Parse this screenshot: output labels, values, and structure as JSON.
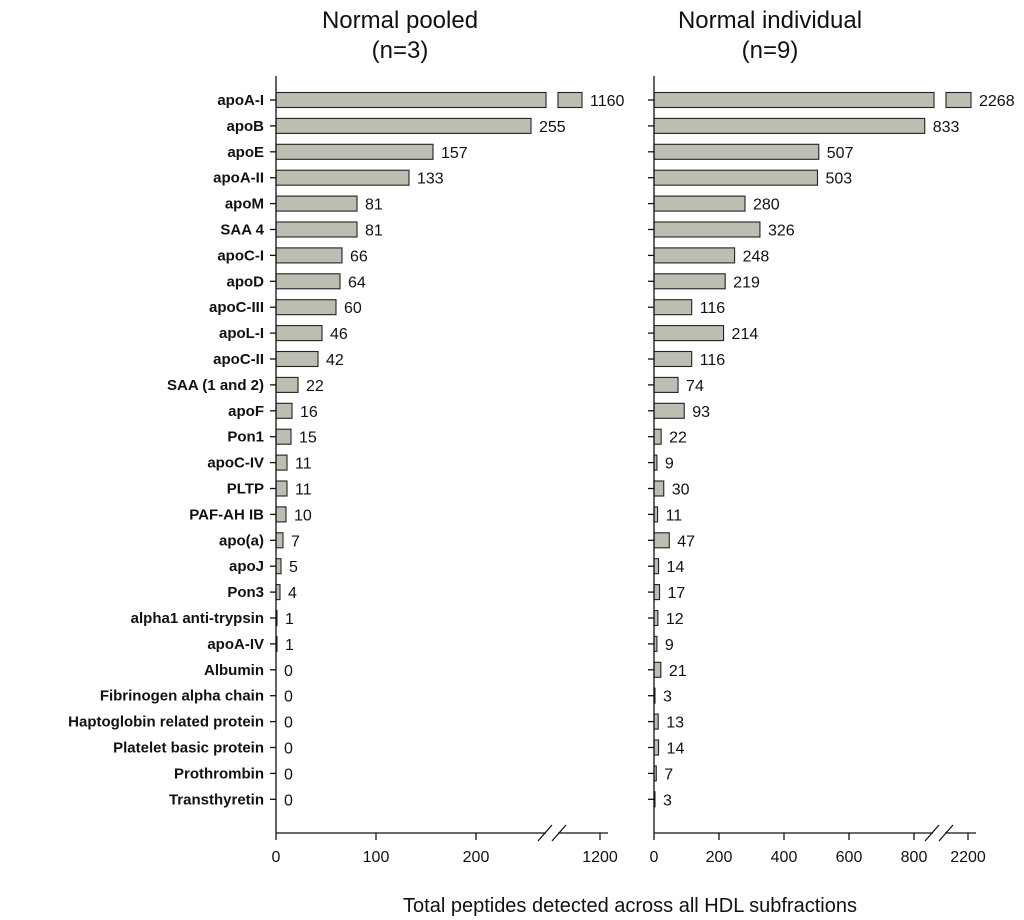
{
  "figure": {
    "xlabel": "Total peptides detected across all HDL subfractions"
  },
  "chart_data": [
    {
      "type": "bar",
      "orientation": "horizontal",
      "title_lines": [
        "Normal pooled",
        "(n=3)"
      ],
      "categories": [
        "apoA-I",
        "apoB",
        "apoE",
        "apoA-II",
        "apoM",
        "SAA 4",
        "apoC-I",
        "apoD",
        "apoC-III",
        "apoL-I",
        "apoC-II",
        "SAA (1 and 2)",
        "apoF",
        "Pon1",
        "apoC-IV",
        "PLTP",
        "PAF-AH IB",
        "apo(a)",
        "apoJ",
        "Pon3",
        "alpha1 anti-trypsin",
        "apoA-IV",
        "Albumin",
        "Fibrinogen alpha chain",
        "Haptoglobin related protein",
        "Platelet basic protein",
        "Prothrombin",
        "Transthyretin"
      ],
      "values": [
        1160,
        255,
        157,
        133,
        81,
        81,
        66,
        64,
        60,
        46,
        42,
        22,
        16,
        15,
        11,
        11,
        10,
        7,
        5,
        4,
        1,
        1,
        0,
        0,
        0,
        0,
        0,
        0
      ],
      "x_ticks": [
        0,
        100,
        200,
        1200
      ],
      "axis_break": true,
      "xlim": [
        0,
        1200
      ]
    },
    {
      "type": "bar",
      "orientation": "horizontal",
      "title_lines": [
        "Normal individual",
        "(n=9)"
      ],
      "categories": [
        "apoA-I",
        "apoB",
        "apoE",
        "apoA-II",
        "apoM",
        "SAA 4",
        "apoC-I",
        "apoD",
        "apoC-III",
        "apoL-I",
        "apoC-II",
        "SAA (1 and 2)",
        "apoF",
        "Pon1",
        "apoC-IV",
        "PLTP",
        "PAF-AH IB",
        "apo(a)",
        "apoJ",
        "Pon3",
        "alpha1 anti-trypsin",
        "apoA-IV",
        "Albumin",
        "Fibrinogen alpha chain",
        "Haptoglobin related protein",
        "Platelet basic protein",
        "Prothrombin",
        "Transthyretin"
      ],
      "values": [
        2268,
        833,
        507,
        503,
        280,
        326,
        248,
        219,
        116,
        214,
        116,
        74,
        93,
        22,
        9,
        30,
        11,
        47,
        14,
        17,
        12,
        9,
        21,
        3,
        13,
        14,
        7,
        3
      ],
      "x_ticks": [
        0,
        200,
        400,
        600,
        800,
        2200
      ],
      "axis_break": true,
      "xlim": [
        0,
        2200
      ]
    }
  ]
}
